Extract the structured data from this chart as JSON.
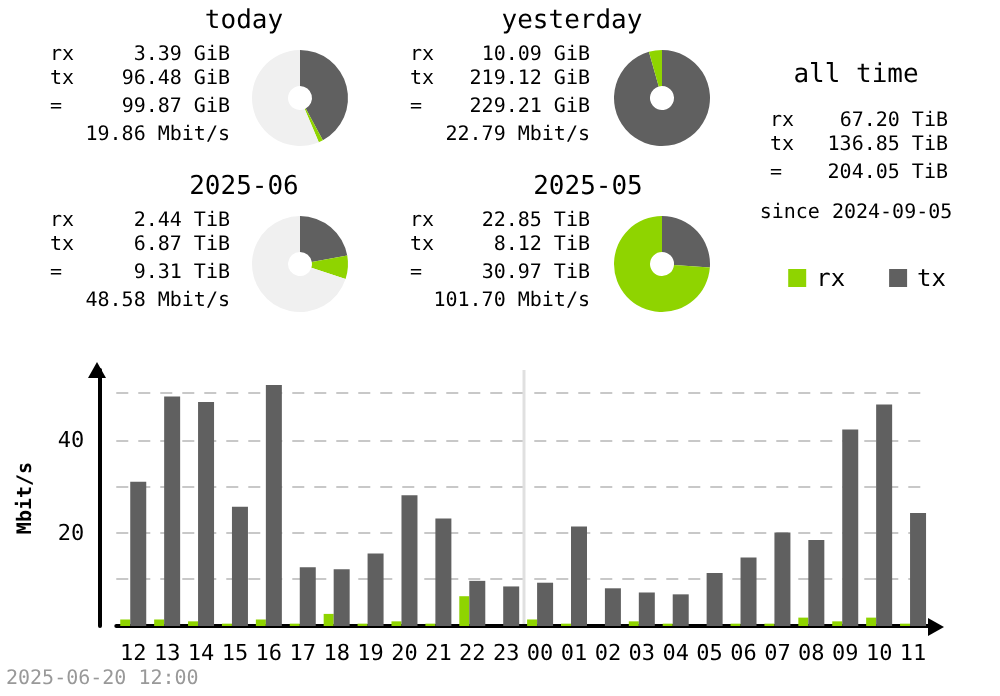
{
  "chart_data": [
    {
      "type": "donut",
      "title": "today",
      "categories": [
        null,
        null,
        null
      ],
      "values": [
        42.1,
        1.5,
        56.4
      ],
      "colors": [
        "#606060",
        "#8fd400",
        "#f0f0f0"
      ],
      "annotations": [
        "rx",
        "3.39 GiB",
        "tx",
        "96.48 GiB",
        "=",
        "99.87 GiB",
        "19.86 Mbit/s"
      ]
    },
    {
      "type": "donut",
      "title": "yesterday",
      "categories": [
        null,
        null
      ],
      "values": [
        95.6,
        4.4
      ],
      "colors": [
        "#606060",
        "#8fd400"
      ],
      "annotations": [
        "rx",
        "10.09 GiB",
        "tx",
        "219.12 GiB",
        "=",
        "229.21 GiB",
        "22.79 Mbit/s"
      ]
    },
    {
      "type": "other",
      "title": "all time",
      "annotations": [
        "rx",
        "67.20 TiB",
        "tx",
        "136.85 TiB",
        "=",
        "204.05 TiB",
        "since 2024-09-05"
      ]
    },
    {
      "type": "donut",
      "title": "2025-06",
      "categories": [
        null,
        null,
        null
      ],
      "values": [
        22.2,
        7.9,
        69.9
      ],
      "colors": [
        "#606060",
        "#8fd400",
        "#f0f0f0"
      ],
      "annotations": [
        "rx",
        "2.44 TiB",
        "tx",
        "6.87 TiB",
        "=",
        "9.31 TiB",
        "48.58 Mbit/s"
      ]
    },
    {
      "type": "donut",
      "title": "2025-05",
      "categories": [
        null,
        null
      ],
      "values": [
        26.2,
        73.8
      ],
      "colors": [
        "#606060",
        "#8fd400"
      ],
      "annotations": [
        "rx",
        "22.85 TiB",
        "tx",
        "8.12 TiB",
        "=",
        "30.97 TiB",
        "101.70 Mbit/s"
      ]
    },
    {
      "type": "bar",
      "ylabel": "Mbit/s",
      "categories": [
        "12",
        "13",
        "14",
        "15",
        "16",
        "17",
        "18",
        "19",
        "20",
        "21",
        "22",
        "23",
        "00",
        "01",
        "02",
        "03",
        "04",
        "05",
        "06",
        "07",
        "08",
        "09",
        "10",
        "11"
      ],
      "series": [
        {
          "name": "rx",
          "color": "#8fd400",
          "values": [
            1.4,
            1.4,
            1.0,
            0.5,
            1.4,
            0.5,
            2.6,
            0.5,
            1.0,
            0.5,
            6.4,
            0,
            1.4,
            0.5,
            0,
            1.0,
            0.5,
            0,
            0.5,
            0.5,
            1.8,
            1.0,
            1.8,
            0.5
          ]
        },
        {
          "name": "tx",
          "color": "#606060",
          "values": [
            31.0,
            49.3,
            48.1,
            25.6,
            51.8,
            12.6,
            12.2,
            15.6,
            28.1,
            23.1,
            9.7,
            8.5,
            9.3,
            21.4,
            8.1,
            7.2,
            6.8,
            11.4,
            14.7,
            20.1,
            18.5,
            42.2,
            47.6,
            24.3
          ]
        }
      ],
      "ylim": [
        0,
        55
      ],
      "yticks": [
        {
          "value": 10,
          "label": null
        },
        20,
        {
          "value": 30,
          "label": null
        },
        40,
        {
          "value": 50,
          "label": null
        }
      ],
      "grid": "y",
      "legend": "top right",
      "ref_lines": [
        {
          "axis": "x",
          "value": "00",
          "color": "#e0e0e0"
        }
      ],
      "annotations": [
        "2025-06-20 12:00"
      ]
    }
  ]
}
